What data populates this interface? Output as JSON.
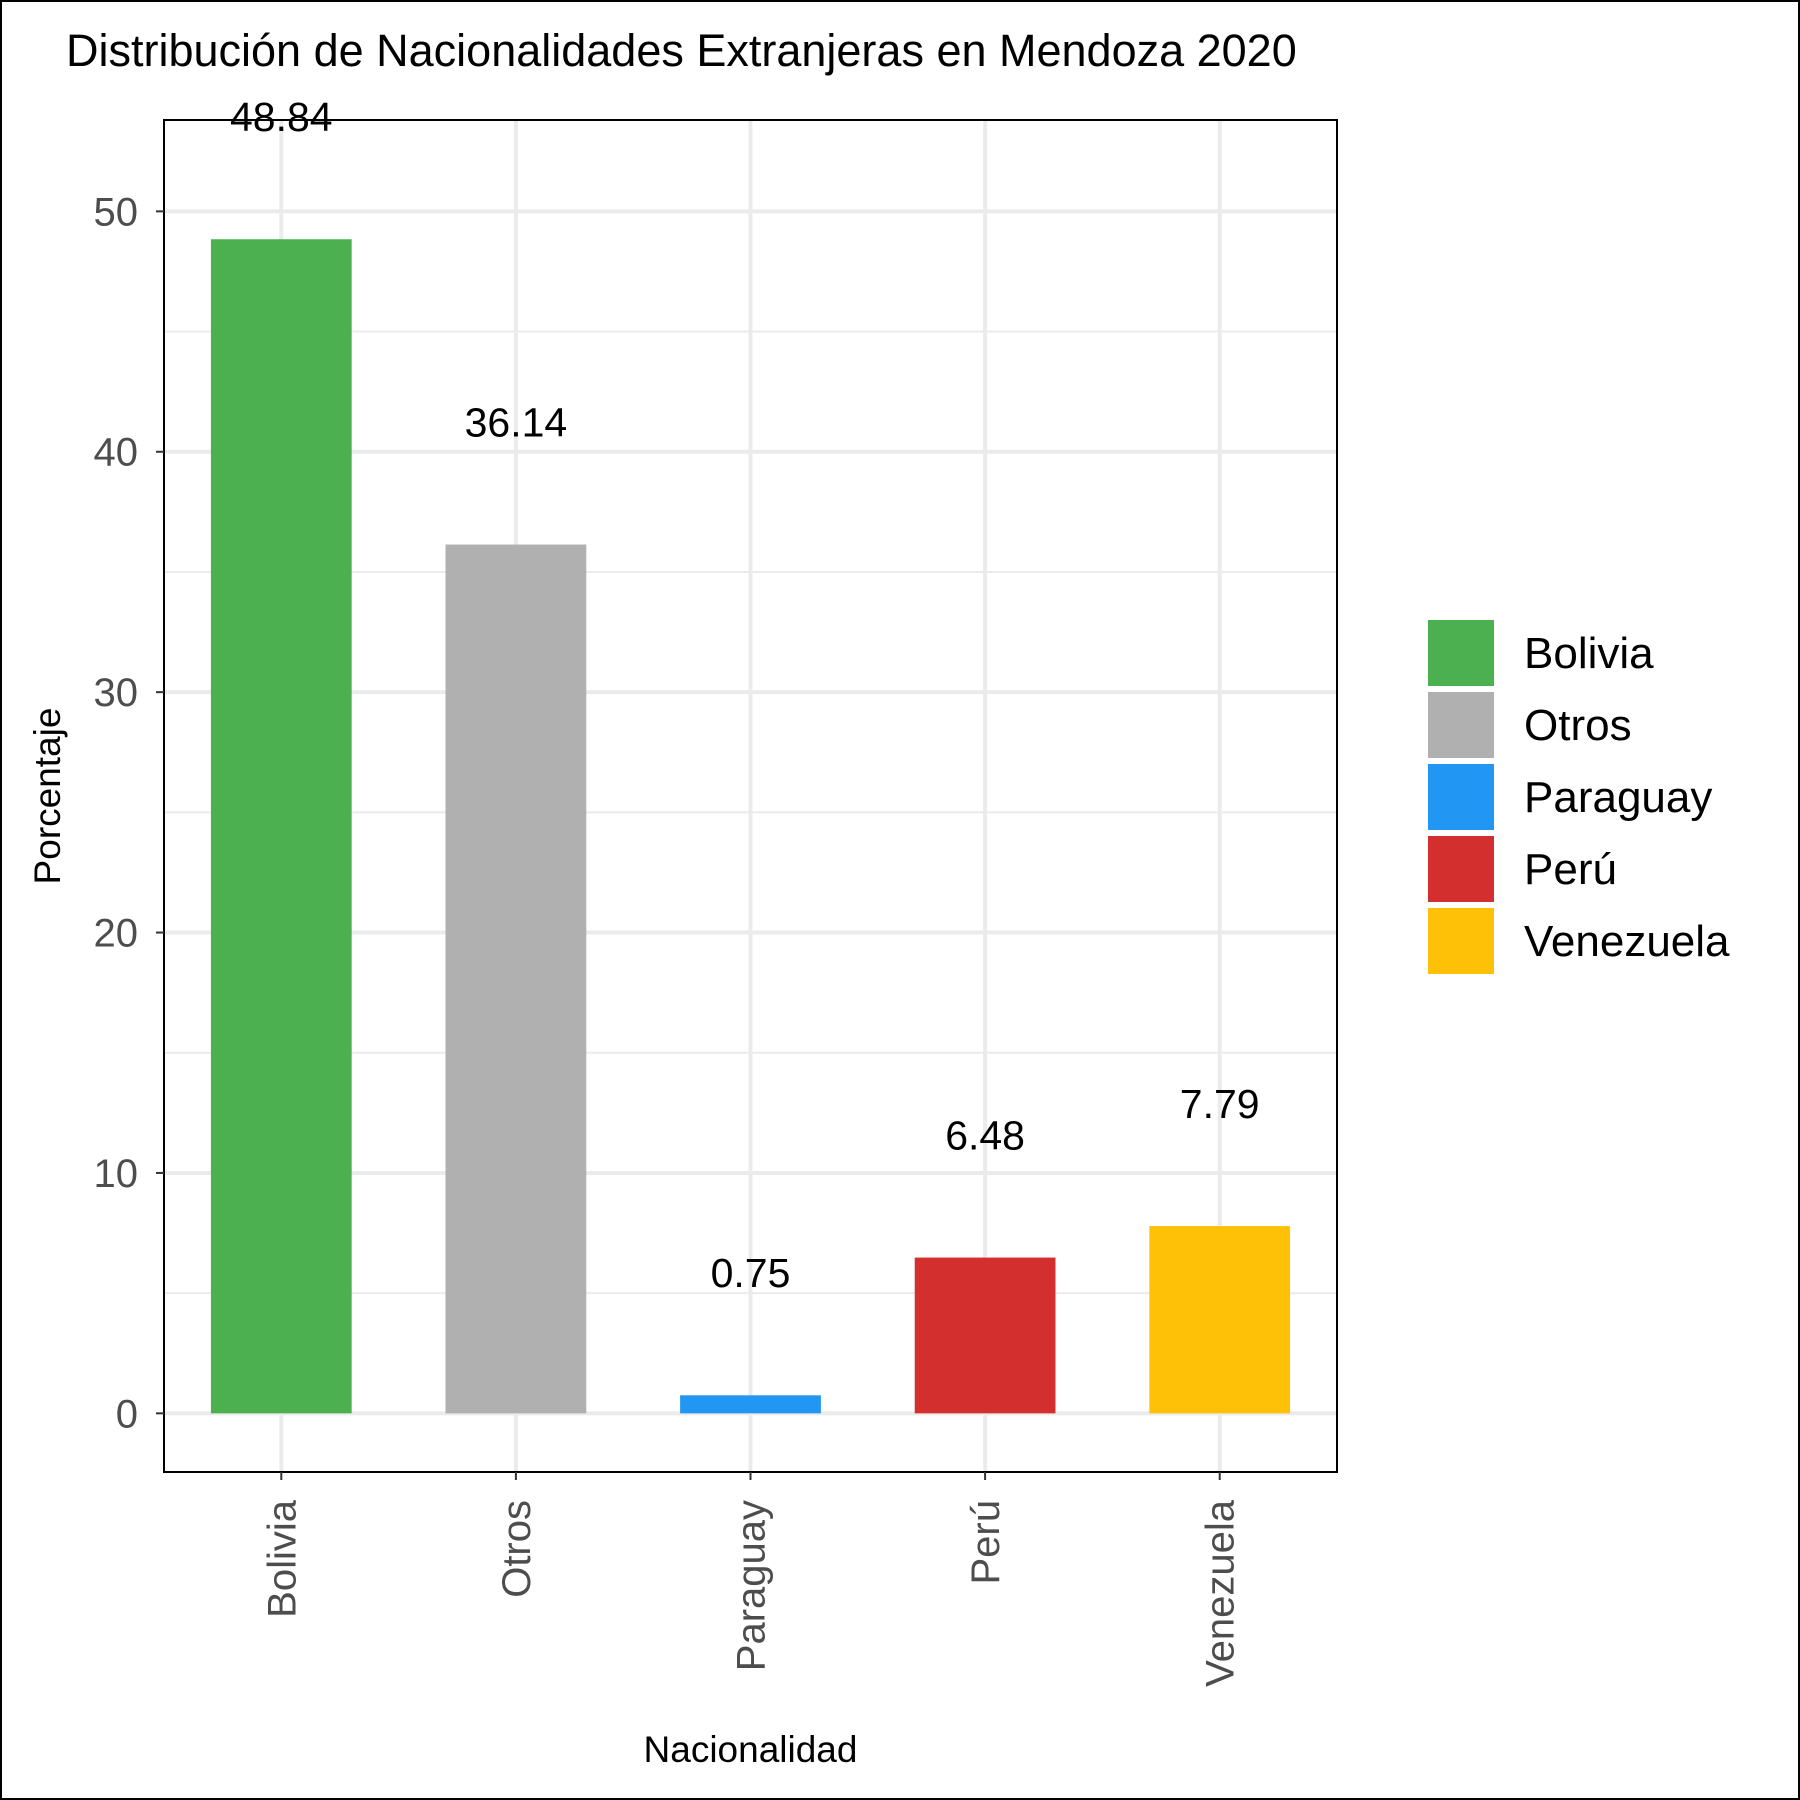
{
  "chart_data": {
    "type": "bar",
    "title": "Distribución de Nacionalidades Extranjeras en Mendoza 2020",
    "xlabel": "Nacionalidad",
    "ylabel": "Porcentaje",
    "categories": [
      "Bolivia",
      "Otros",
      "Paraguay",
      "Perú",
      "Venezuela"
    ],
    "values": [
      48.84,
      36.14,
      0.75,
      6.48,
      7.79
    ],
    "data_labels": [
      "48.84",
      "36.14",
      "0.75",
      "6.48",
      "7.79"
    ],
    "colors": [
      "#4caf50",
      "#b0b0b0",
      "#2196f3",
      "#d32f2f",
      "#ffc107"
    ],
    "ylim": [
      -2.44,
      53.8
    ],
    "yticks": [
      0,
      10,
      20,
      30,
      40,
      50
    ],
    "ytick_labels": [
      "0",
      "10",
      "20",
      "30",
      "40",
      "50"
    ],
    "grid": true,
    "x_tick_rotation": "vertical",
    "legend": {
      "position": "right",
      "entries": [
        "Bolivia",
        "Otros",
        "Paraguay",
        "Perú",
        "Venezuela"
      ]
    }
  }
}
